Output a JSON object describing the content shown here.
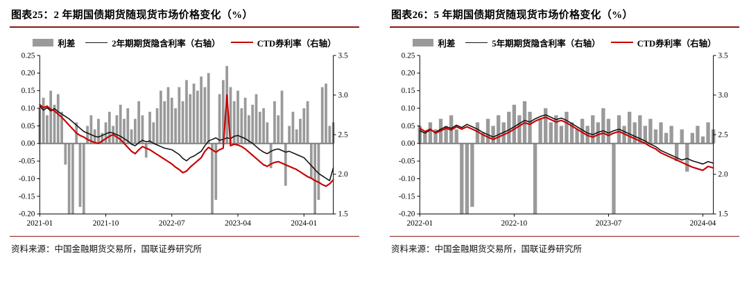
{
  "page": {
    "accent_red": "#8e1515",
    "bar_color": "#9a9a9a",
    "black_line_color": "#111111",
    "red_line_color": "#c80000"
  },
  "chart_data": [
    {
      "type": "bar+line",
      "title": "图表25：2 年期国债期货随现货市场价格变化（%）",
      "source": "资料来源：中国金融期货交易所，国联证券研究所",
      "left_axis": {
        "min": -0.2,
        "max": 0.25,
        "step": 0.05,
        "decimals": 2
      },
      "right_axis": {
        "min": 1.5,
        "max": 3.5,
        "step": 0.5,
        "decimals": 1
      },
      "x_ticks": {
        "labels": [
          "2021-01",
          "2021-10",
          "2022-07",
          "2023-04",
          "2024-01"
        ],
        "indices": [
          0,
          18,
          36,
          54,
          72
        ]
      },
      "series": [
        {
          "name": "利差",
          "type": "bar",
          "axis": "left",
          "color": "#9a9a9a",
          "values": [
            0.1,
            0.13,
            0.08,
            0.15,
            0.11,
            0.14,
            0.09,
            -0.06,
            -0.2,
            -0.2,
            0.06,
            -0.18,
            -0.2,
            0.05,
            0.08,
            0.04,
            0.07,
            0.03,
            0.06,
            0.09,
            0.05,
            0.08,
            0.11,
            0.07,
            0.1,
            0.04,
            0.07,
            0.12,
            0.08,
            -0.04,
            0.09,
            0.06,
            0.1,
            0.15,
            0.12,
            0.16,
            0.13,
            0.1,
            0.16,
            0.12,
            0.18,
            0.14,
            0.17,
            0.15,
            0.19,
            0.16,
            0.2,
            -0.2,
            -0.16,
            0.14,
            0.18,
            0.22,
            0.16,
            0.12,
            0.15,
            0.1,
            0.13,
            0.08,
            0.11,
            0.14,
            0.09,
            0.1,
            0.06,
            -0.07,
            0.12,
            0.08,
            0.15,
            -0.12,
            0.05,
            0.09,
            0.04,
            0.07,
            0.1,
            0.12,
            -0.1,
            -0.2,
            -0.16,
            0.16,
            0.17,
            0.05,
            0.06
          ]
        },
        {
          "name": "2年期期货隐含利率（右轴）",
          "type": "line",
          "axis": "right",
          "color": "#111111",
          "width": 1.6,
          "values": [
            2.86,
            2.81,
            2.84,
            2.8,
            2.83,
            2.79,
            2.76,
            2.73,
            2.7,
            2.66,
            2.62,
            2.58,
            2.54,
            2.52,
            2.5,
            2.48,
            2.47,
            2.49,
            2.51,
            2.53,
            2.52,
            2.5,
            2.48,
            2.45,
            2.42,
            2.38,
            2.36,
            2.4,
            2.43,
            2.41,
            2.42,
            2.39,
            2.37,
            2.35,
            2.33,
            2.32,
            2.31,
            2.28,
            2.25,
            2.2,
            2.17,
            2.21,
            2.23,
            2.26,
            2.29,
            2.36,
            2.42,
            2.44,
            2.46,
            2.43,
            2.44,
            2.46,
            2.45,
            2.48,
            2.49,
            2.47,
            2.45,
            2.42,
            2.39,
            2.35,
            2.31,
            2.28,
            2.26,
            2.29,
            2.31,
            2.32,
            2.3,
            2.28,
            2.29,
            2.27,
            2.25,
            2.23,
            2.21,
            2.16,
            2.11,
            2.06,
            2.01,
            1.98,
            1.95,
            1.92,
            2.08
          ]
        },
        {
          "name": "CTD券利率（右轴）",
          "type": "line",
          "axis": "right",
          "color": "#c80000",
          "width": 2.2,
          "values": [
            2.88,
            2.84,
            2.86,
            2.82,
            2.8,
            2.76,
            2.72,
            2.67,
            2.62,
            2.57,
            2.52,
            2.49,
            2.47,
            2.44,
            2.42,
            2.4,
            2.39,
            2.42,
            2.45,
            2.48,
            2.5,
            2.47,
            2.44,
            2.39,
            2.34,
            2.29,
            2.26,
            2.31,
            2.35,
            2.33,
            2.31,
            2.28,
            2.25,
            2.22,
            2.19,
            2.16,
            2.13,
            2.09,
            2.06,
            2.02,
            2.04,
            2.09,
            2.13,
            2.17,
            2.21,
            2.29,
            2.34,
            2.31,
            2.28,
            2.31,
            2.33,
            3.0,
            2.36,
            2.38,
            2.37,
            2.35,
            2.32,
            2.28,
            2.24,
            2.2,
            2.16,
            2.12,
            2.1,
            2.13,
            2.15,
            2.16,
            2.14,
            2.12,
            2.1,
            2.08,
            2.06,
            2.03,
            2.0,
            1.97,
            1.95,
            1.92,
            1.9,
            1.87,
            1.85,
            1.88,
            1.93
          ]
        }
      ]
    },
    {
      "type": "bar+line",
      "title": "图表26：5 年期国债期货随现货市场价格变化（%）",
      "source": "资料来源：中国金融期货交易所，国联证券研究所",
      "left_axis": {
        "min": -0.2,
        "max": 0.25,
        "step": 0.05,
        "decimals": 2
      },
      "right_axis": {
        "min": 1.5,
        "max": 3.5,
        "step": 0.5,
        "decimals": 1
      },
      "x_ticks": {
        "labels": [
          "2022-01",
          "2022-10",
          "2023-07",
          "2024-04"
        ],
        "indices": [
          0,
          18,
          36,
          54
        ]
      },
      "series": [
        {
          "name": "利差",
          "type": "bar",
          "axis": "left",
          "color": "#9a9a9a",
          "values": [
            0.05,
            0.03,
            0.06,
            0.04,
            0.07,
            0.05,
            0.08,
            0.04,
            -0.2,
            -0.2,
            -0.18,
            0.06,
            0.03,
            0.07,
            0.05,
            0.08,
            0.06,
            0.09,
            0.11,
            0.08,
            0.12,
            0.09,
            -0.2,
            0.07,
            0.1,
            0.06,
            0.08,
            0.05,
            0.09,
            0.06,
            0.04,
            0.07,
            0.05,
            0.08,
            0.06,
            0.1,
            0.07,
            -0.2,
            0.08,
            0.05,
            0.09,
            0.06,
            0.08,
            0.05,
            0.07,
            0.04,
            0.06,
            0.03,
            0.05,
            -0.05,
            0.04,
            -0.08,
            0.03,
            0.05,
            0.02,
            0.06,
            0.04
          ]
        },
        {
          "name": "5年期期货隐含利率（右轴）",
          "type": "line",
          "axis": "right",
          "color": "#111111",
          "width": 1.6,
          "values": [
            2.55,
            2.52,
            2.56,
            2.53,
            2.57,
            2.6,
            2.58,
            2.62,
            2.59,
            2.63,
            2.6,
            2.57,
            2.53,
            2.5,
            2.47,
            2.5,
            2.53,
            2.56,
            2.6,
            2.64,
            2.68,
            2.66,
            2.7,
            2.73,
            2.75,
            2.72,
            2.69,
            2.71,
            2.68,
            2.64,
            2.6,
            2.56,
            2.52,
            2.5,
            2.53,
            2.55,
            2.52,
            2.55,
            2.57,
            2.54,
            2.51,
            2.48,
            2.45,
            2.42,
            2.38,
            2.35,
            2.3,
            2.27,
            2.24,
            2.21,
            2.18,
            2.2,
            2.17,
            2.15,
            2.13,
            2.16,
            2.14
          ]
        },
        {
          "name": "CTD券利率（右轴）",
          "type": "line",
          "axis": "right",
          "color": "#c80000",
          "width": 2.2,
          "values": [
            2.58,
            2.54,
            2.57,
            2.52,
            2.55,
            2.58,
            2.56,
            2.6,
            2.57,
            2.6,
            2.57,
            2.54,
            2.5,
            2.47,
            2.44,
            2.47,
            2.5,
            2.53,
            2.57,
            2.61,
            2.65,
            2.63,
            2.67,
            2.7,
            2.72,
            2.69,
            2.66,
            2.68,
            2.65,
            2.61,
            2.57,
            2.53,
            2.49,
            2.47,
            2.5,
            2.52,
            2.49,
            2.52,
            2.54,
            2.51,
            2.48,
            2.45,
            2.42,
            2.39,
            2.35,
            2.32,
            2.27,
            2.24,
            2.21,
            2.18,
            2.15,
            2.12,
            2.09,
            2.07,
            2.05,
            2.1,
            2.08
          ]
        }
      ]
    }
  ]
}
